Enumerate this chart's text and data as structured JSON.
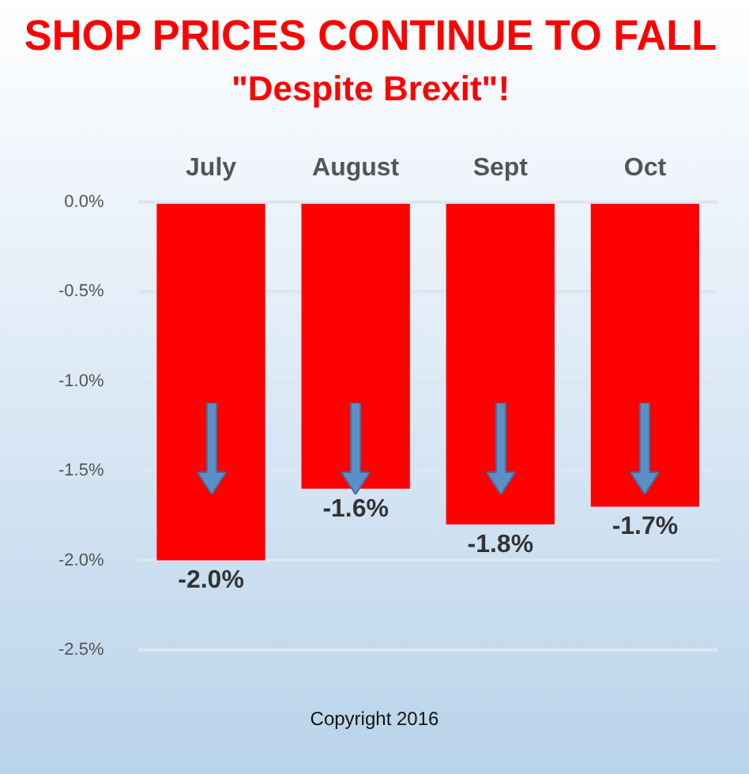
{
  "chart_data": {
    "type": "bar",
    "title": "SHOP PRICES CONTINUE TO FALL",
    "subtitle": "\"Despite Brexit\"!",
    "categories": [
      "July",
      "August",
      "Sept",
      "Oct"
    ],
    "values": [
      -2.0,
      -1.6,
      -1.8,
      -1.7
    ],
    "value_labels": [
      "-2.0%",
      "-1.6%",
      "-1.8%",
      "-1.7%"
    ],
    "color": "#ff0000",
    "ylim": [
      -2.5,
      0
    ],
    "yticks": [
      {
        "value": 0,
        "label": "0.0%"
      },
      {
        "value": -0.5,
        "label": "-0.5%"
      },
      {
        "value": -1,
        "label": "-1.0%"
      },
      {
        "value": -1.5,
        "label": "-1.5%"
      },
      {
        "value": -2,
        "label": "-2.0%"
      },
      {
        "value": -2.5,
        "label": "-2.5%"
      }
    ],
    "grid": "y",
    "legend": false,
    "annotations": [
      "Copyright 2016"
    ]
  }
}
